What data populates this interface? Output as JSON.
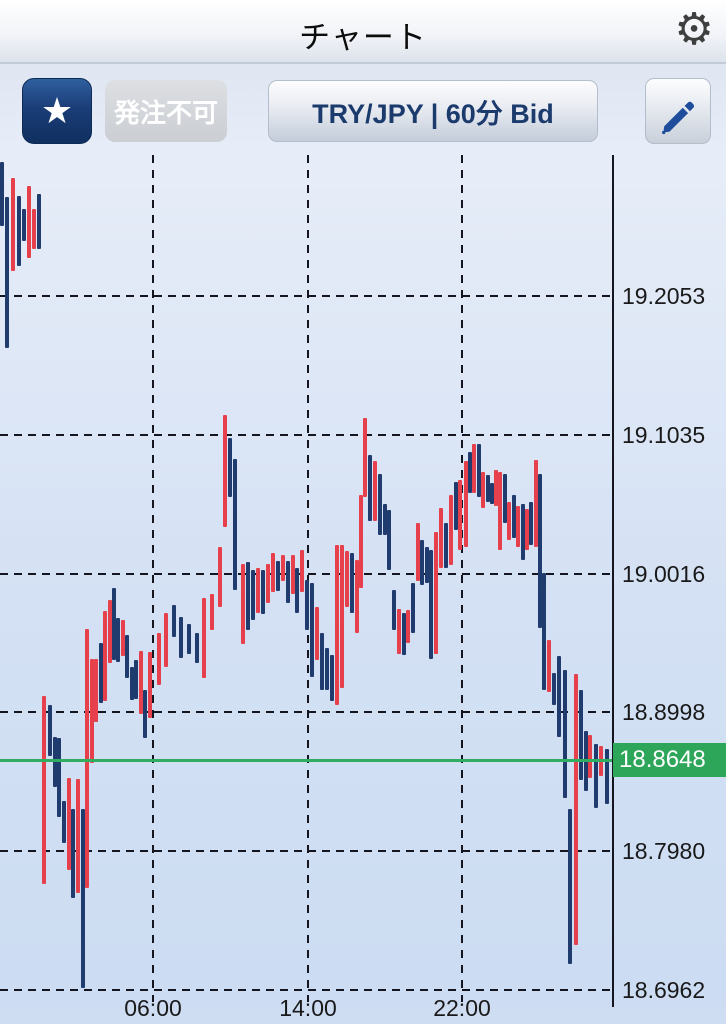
{
  "header": {
    "title": "チャート",
    "gear_icon_glyph": "⚙"
  },
  "toolbar": {
    "favorite_star_glyph": "★",
    "order_status_label": "発注不可",
    "pair_label": "TRY/JPY | 60分 Bid",
    "pen_icon": "pen"
  },
  "colors": {
    "bar_red": "#e5404b",
    "bar_navy": "#203c6e",
    "current_price_green": "#2ea65a",
    "grid": "#15151f",
    "accent_navy_button": "#16376e"
  },
  "chart_data": {
    "type": "bar",
    "subtype": "high-low-price-bars",
    "instrument": "TRY/JPY",
    "interval": "60分",
    "price_side": "Bid",
    "current_price": "18.8648",
    "y_axis": {
      "tick_labels": [
        "19.2053",
        "19.1035",
        "19.0016",
        "18.8998",
        "18.7980",
        "18.6962"
      ],
      "tick_values": [
        19.2053,
        19.1035,
        19.0016,
        18.8998,
        18.798,
        18.6962
      ],
      "visible_range": [
        18.6962,
        19.3088
      ],
      "grid": "dashed"
    },
    "x_axis": {
      "tick_labels": [
        "06:00",
        "14:00",
        "22:00"
      ],
      "grid": "dashed"
    },
    "legend": "none",
    "bars": [
      [
        2,
        19.304,
        19.257,
        "n"
      ],
      [
        7,
        19.278,
        19.167,
        "n"
      ],
      [
        13,
        19.292,
        19.224,
        "r"
      ],
      [
        19,
        19.279,
        19.227,
        "n"
      ],
      [
        24,
        19.269,
        19.246,
        "n"
      ],
      [
        29,
        19.286,
        19.233,
        "r"
      ],
      [
        34,
        19.269,
        19.24,
        "r"
      ],
      [
        39,
        19.28,
        19.24,
        "n"
      ],
      [
        44,
        18.912,
        18.774,
        "r"
      ],
      [
        50,
        18.905,
        18.868,
        "n"
      ],
      [
        55,
        18.882,
        18.845,
        "n"
      ],
      [
        59,
        18.881,
        18.823,
        "n"
      ],
      [
        64,
        18.835,
        18.804,
        "n"
      ],
      [
        69,
        18.852,
        18.784,
        "r"
      ],
      [
        73,
        18.829,
        18.764,
        "n"
      ],
      [
        78,
        18.851,
        18.767,
        "r"
      ],
      [
        83,
        18.829,
        18.698,
        "n"
      ],
      [
        87,
        18.961,
        18.771,
        "r"
      ],
      [
        92,
        18.939,
        18.863,
        "r"
      ],
      [
        96,
        18.939,
        18.893,
        "r"
      ],
      [
        101,
        18.951,
        18.907,
        "n"
      ],
      [
        105,
        18.974,
        18.908,
        "r"
      ],
      [
        110,
        18.982,
        18.936,
        "r"
      ],
      [
        114,
        18.991,
        18.938,
        "n"
      ],
      [
        118,
        18.969,
        18.937,
        "n"
      ],
      [
        123,
        18.968,
        18.941,
        "r"
      ],
      [
        127,
        18.957,
        18.925,
        "n"
      ],
      [
        132,
        18.933,
        18.909,
        "n"
      ],
      [
        136,
        18.938,
        18.91,
        "n"
      ],
      [
        141,
        18.945,
        18.899,
        "r"
      ],
      [
        145,
        18.916,
        18.881,
        "n"
      ],
      [
        150,
        18.944,
        18.896,
        "r"
      ],
      [
        159,
        18.958,
        18.92,
        "r"
      ],
      [
        166,
        18.973,
        18.933,
        "r"
      ],
      [
        174,
        18.979,
        18.955,
        "n"
      ],
      [
        181,
        18.97,
        18.94,
        "n"
      ],
      [
        189,
        18.965,
        18.943,
        "n"
      ],
      [
        197,
        18.958,
        18.936,
        "n"
      ],
      [
        204,
        18.984,
        18.925,
        "r"
      ],
      [
        212,
        18.987,
        18.96,
        "r"
      ],
      [
        220,
        19.021,
        18.977,
        "r"
      ],
      [
        225,
        19.118,
        19.036,
        "r"
      ],
      [
        230,
        19.101,
        19.058,
        "n"
      ],
      [
        235,
        19.086,
        18.99,
        "n"
      ],
      [
        243,
        19.009,
        18.95,
        "r"
      ],
      [
        248,
        19.01,
        18.96,
        "n"
      ],
      [
        253,
        19.004,
        18.968,
        "n"
      ],
      [
        258,
        19.006,
        18.973,
        "r"
      ],
      [
        263,
        19.004,
        18.972,
        "n"
      ],
      [
        268,
        19.009,
        18.98,
        "r"
      ],
      [
        273,
        19.017,
        18.988,
        "r"
      ],
      [
        278,
        19.011,
        18.989,
        "n"
      ],
      [
        283,
        19.015,
        18.996,
        "r"
      ],
      [
        288,
        19.011,
        18.98,
        "n"
      ],
      [
        293,
        19.015,
        18.987,
        "r"
      ],
      [
        297,
        19.006,
        18.973,
        "n"
      ],
      [
        302,
        19.019,
        18.988,
        "r"
      ],
      [
        307,
        18.997,
        18.96,
        "n"
      ],
      [
        312,
        18.995,
        18.926,
        "n"
      ],
      [
        317,
        18.977,
        18.938,
        "r"
      ],
      [
        322,
        18.958,
        18.916,
        "n"
      ],
      [
        327,
        18.947,
        18.916,
        "n"
      ],
      [
        332,
        18.942,
        18.908,
        "n"
      ],
      [
        337,
        19.023,
        18.905,
        "r"
      ],
      [
        342,
        19.023,
        18.918,
        "r"
      ],
      [
        347,
        19.018,
        18.977,
        "r"
      ],
      [
        352,
        19.017,
        18.973,
        "n"
      ],
      [
        357,
        19.012,
        18.958,
        "r"
      ],
      [
        361,
        19.059,
        18.991,
        "r"
      ],
      [
        365,
        19.116,
        19.058,
        "r"
      ],
      [
        370,
        19.089,
        19.04,
        "n"
      ],
      [
        375,
        19.084,
        19.04,
        "r"
      ],
      [
        380,
        19.075,
        19.03,
        "n"
      ],
      [
        385,
        19.053,
        19.03,
        "n"
      ],
      [
        389,
        19.048,
        19.004,
        "n"
      ],
      [
        394,
        18.99,
        18.96,
        "n"
      ],
      [
        399,
        18.976,
        18.943,
        "r"
      ],
      [
        404,
        18.973,
        18.942,
        "n"
      ],
      [
        408,
        18.975,
        18.951,
        "r"
      ],
      [
        413,
        18.995,
        18.958,
        "n"
      ],
      [
        418,
        19.039,
        18.996,
        "r"
      ],
      [
        422,
        19.026,
        18.993,
        "n"
      ],
      [
        427,
        19.021,
        18.995,
        "n"
      ],
      [
        431,
        19.019,
        18.939,
        "n"
      ],
      [
        436,
        19.032,
        18.943,
        "r"
      ],
      [
        441,
        19.05,
        19.006,
        "r"
      ],
      [
        446,
        19.039,
        19.006,
        "n"
      ],
      [
        451,
        19.059,
        19.008,
        "r"
      ],
      [
        456,
        19.069,
        19.034,
        "n"
      ],
      [
        460,
        19.07,
        19.019,
        "r"
      ],
      [
        466,
        19.084,
        19.021,
        "r"
      ],
      [
        470,
        19.091,
        19.061,
        "n"
      ],
      [
        474,
        19.097,
        19.061,
        "r"
      ],
      [
        479,
        19.097,
        19.058,
        "n"
      ],
      [
        483,
        19.076,
        19.05,
        "r"
      ],
      [
        488,
        19.074,
        19.054,
        "n"
      ],
      [
        492,
        19.068,
        19.053,
        "n"
      ],
      [
        496,
        19.078,
        19.051,
        "r"
      ],
      [
        500,
        19.076,
        19.019,
        "r"
      ],
      [
        505,
        19.075,
        19.039,
        "n"
      ],
      [
        509,
        19.054,
        19.026,
        "r"
      ],
      [
        514,
        19.059,
        19.028,
        "n"
      ],
      [
        518,
        19.051,
        19.021,
        "r"
      ],
      [
        523,
        19.053,
        19.012,
        "n"
      ],
      [
        527,
        19.049,
        19.019,
        "r"
      ],
      [
        531,
        19.054,
        19.023,
        "n"
      ],
      [
        536,
        19.085,
        19.021,
        "r"
      ],
      [
        540,
        19.075,
        18.962,
        "n"
      ],
      [
        544,
        19.002,
        18.916,
        "n"
      ],
      [
        549,
        18.953,
        18.915,
        "r"
      ],
      [
        554,
        18.929,
        18.905,
        "n"
      ],
      [
        559,
        18.941,
        18.882,
        "n"
      ],
      [
        565,
        18.931,
        18.837,
        "n"
      ],
      [
        570,
        18.829,
        18.715,
        "n"
      ],
      [
        576,
        18.928,
        18.729,
        "r"
      ],
      [
        581,
        18.916,
        18.85,
        "n"
      ],
      [
        586,
        18.886,
        18.842,
        "n"
      ],
      [
        590,
        18.883,
        18.852,
        "r"
      ],
      [
        596,
        18.877,
        18.83,
        "n"
      ],
      [
        601,
        18.875,
        18.853,
        "r"
      ],
      [
        607,
        18.873,
        18.833,
        "n"
      ]
    ]
  }
}
